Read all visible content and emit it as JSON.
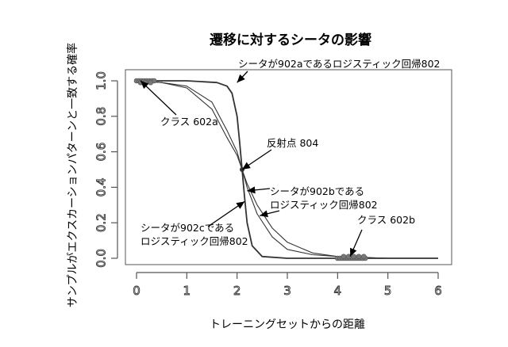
{
  "chart_data": {
    "type": "line",
    "title": "遷移に対するシータの影響",
    "xlabel": "トレーニングセットからの距離",
    "ylabel": "サンプルがエクスカーションパターンと一致する確率",
    "xlim": [
      0,
      6
    ],
    "ylim": [
      0,
      1
    ],
    "xticks": [
      "0",
      "1",
      "2",
      "3",
      "4",
      "5",
      "6"
    ],
    "yticks": [
      "0.0",
      "0.2",
      "0.4",
      "0.6",
      "0.8",
      "1.0"
    ],
    "grid": false,
    "series": [
      {
        "name": "シータが902aであるロジスティック回帰802",
        "x": [
          0,
          1.0,
          1.6,
          1.8,
          1.9,
          2.0,
          2.05,
          2.1,
          2.15,
          2.2,
          2.3,
          2.5,
          3.0,
          4.0,
          6.0
        ],
        "y": [
          1.0,
          1.0,
          0.99,
          0.97,
          0.93,
          0.8,
          0.66,
          0.5,
          0.34,
          0.2,
          0.07,
          0.01,
          0.0,
          0.0,
          0.0
        ]
      },
      {
        "name": "シータが902bであるロジスティック回帰802",
        "x": [
          0,
          0.5,
          1.0,
          1.5,
          1.8,
          2.0,
          2.1,
          2.2,
          2.4,
          2.7,
          3.0,
          3.5,
          4.0,
          5.0,
          6.0
        ],
        "y": [
          1.0,
          0.99,
          0.97,
          0.88,
          0.72,
          0.6,
          0.5,
          0.4,
          0.25,
          0.12,
          0.05,
          0.02,
          0.01,
          0.0,
          0.0
        ]
      },
      {
        "name": "シータが902cであるロジスティック回帰802",
        "x": [
          0,
          0.5,
          1.0,
          1.5,
          1.8,
          2.0,
          2.1,
          2.2,
          2.4,
          2.7,
          3.0,
          3.5,
          4.0,
          5.0,
          6.0
        ],
        "y": [
          1.0,
          0.99,
          0.96,
          0.84,
          0.68,
          0.58,
          0.5,
          0.42,
          0.3,
          0.17,
          0.09,
          0.03,
          0.01,
          0.0,
          0.0
        ]
      }
    ],
    "clusters": [
      {
        "name": "クラス 602a",
        "x": [
          0.0,
          0.05,
          0.1,
          0.15,
          0.2,
          0.25,
          0.3,
          0.35,
          0.08,
          0.18,
          0.28
        ],
        "y": [
          1.0,
          1.0,
          1.0,
          1.0,
          1.0,
          1.0,
          1.0,
          1.0,
          0.99,
          0.99,
          0.99
        ]
      },
      {
        "name": "クラス 602b",
        "x": [
          4.0,
          4.05,
          4.1,
          4.15,
          4.2,
          4.25,
          4.3,
          4.35,
          4.4,
          4.45,
          4.5,
          4.55,
          4.12,
          4.22,
          4.32,
          4.42,
          4.52
        ],
        "y": [
          0.0,
          0.0,
          0.0,
          0.0,
          0.0,
          0.0,
          0.0,
          0.0,
          0.0,
          0.0,
          0.0,
          0.0,
          0.01,
          0.01,
          0.01,
          0.01,
          0.01
        ]
      }
    ],
    "inflection_point": {
      "label": "反射点 804",
      "x": 2.1,
      "y": 0.5
    },
    "annotations": [
      {
        "key": "a",
        "text": "シータが902aであるロジスティック回帰802"
      },
      {
        "key": "class_a",
        "text": "クラス 602a"
      },
      {
        "key": "inflection",
        "text": "反射点  804"
      },
      {
        "key": "b_line1",
        "text": "シータが902bである"
      },
      {
        "key": "b_line2",
        "text": "ロジスティック回帰802"
      },
      {
        "key": "class_b",
        "text": "クラス 602b"
      },
      {
        "key": "c_line1",
        "text": "シータが902cである"
      },
      {
        "key": "c_line2",
        "text": "ロジスティック回帰802"
      }
    ]
  }
}
